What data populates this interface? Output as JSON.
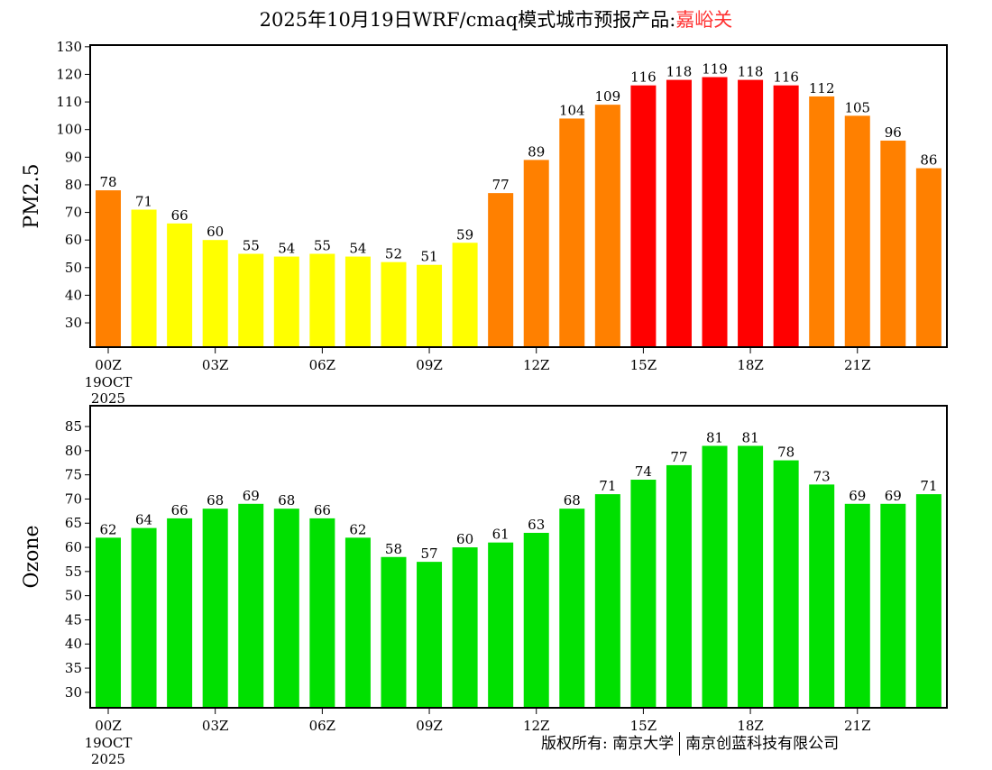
{
  "title": {
    "main": "2025年10月19日WRF/cmaq模式城市预报产品:",
    "location": "嘉峪关"
  },
  "footer": {
    "left": "版权所有: 南京大学",
    "right": "南京创蓝科技有限公司"
  },
  "colors": {
    "yellow": "#ffff00",
    "orange": "#ff8000",
    "red": "#ff0000",
    "green": "#00e000"
  },
  "chart_data": [
    {
      "type": "bar",
      "ylabel": "PM2.5",
      "ylim": [
        21.2,
        130.6
      ],
      "yticks": [
        30,
        40,
        50,
        60,
        70,
        80,
        90,
        100,
        110,
        120,
        130
      ],
      "xticks": [
        {
          "i": 0,
          "label": "00Z",
          "sub": [
            "19OCT",
            "2025"
          ]
        },
        {
          "i": 3,
          "label": "03Z"
        },
        {
          "i": 6,
          "label": "06Z"
        },
        {
          "i": 9,
          "label": "09Z"
        },
        {
          "i": 12,
          "label": "12Z"
        },
        {
          "i": 15,
          "label": "15Z"
        },
        {
          "i": 18,
          "label": "18Z"
        },
        {
          "i": 21,
          "label": "21Z"
        }
      ],
      "values": [
        78,
        71,
        66,
        60,
        55,
        54,
        55,
        54,
        52,
        51,
        59,
        77,
        89,
        104,
        109,
        116,
        118,
        119,
        118,
        116,
        112,
        105,
        96,
        86
      ],
      "bar_colors": [
        "orange",
        "yellow",
        "yellow",
        "yellow",
        "yellow",
        "yellow",
        "yellow",
        "yellow",
        "yellow",
        "yellow",
        "yellow",
        "orange",
        "orange",
        "orange",
        "orange",
        "red",
        "red",
        "red",
        "red",
        "red",
        "orange",
        "orange",
        "orange",
        "orange"
      ]
    },
    {
      "type": "bar",
      "ylabel": "Ozone",
      "ylim": [
        26.8,
        89.3
      ],
      "yticks": [
        30,
        35,
        40,
        45,
        50,
        55,
        60,
        65,
        70,
        75,
        80,
        85
      ],
      "xticks": [
        {
          "i": 0,
          "label": "00Z",
          "sub": [
            "19OCT",
            "2025"
          ]
        },
        {
          "i": 3,
          "label": "03Z"
        },
        {
          "i": 6,
          "label": "06Z"
        },
        {
          "i": 9,
          "label": "09Z"
        },
        {
          "i": 12,
          "label": "12Z"
        },
        {
          "i": 15,
          "label": "15Z"
        },
        {
          "i": 18,
          "label": "18Z"
        },
        {
          "i": 21,
          "label": "21Z"
        }
      ],
      "values": [
        62,
        64,
        66,
        68,
        69,
        68,
        66,
        62,
        58,
        57,
        60,
        61,
        63,
        68,
        71,
        74,
        77,
        81,
        81,
        78,
        73,
        69,
        69,
        71
      ],
      "bar_colors": [
        "green",
        "green",
        "green",
        "green",
        "green",
        "green",
        "green",
        "green",
        "green",
        "green",
        "green",
        "green",
        "green",
        "green",
        "green",
        "green",
        "green",
        "green",
        "green",
        "green",
        "green",
        "green",
        "green",
        "green"
      ]
    }
  ]
}
